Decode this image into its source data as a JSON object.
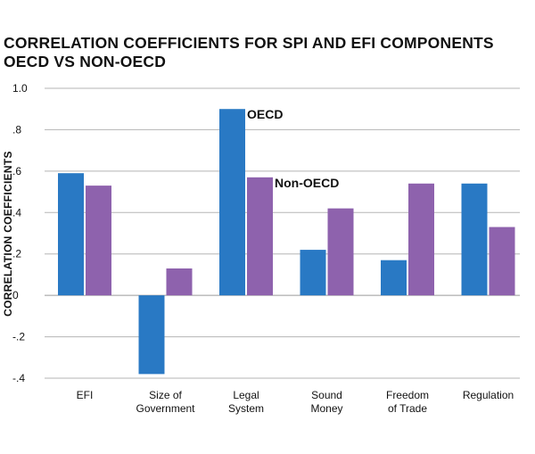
{
  "chart_data": {
    "type": "bar",
    "title_line1": "CORRELATION COEFFICIENTS FOR SPI AND EFI COMPONENTS",
    "title_line2": "OECD VS NON-OECD",
    "ylabel": "CORRELATION COEFFICIENTS",
    "xlabel": "",
    "ylim": [
      -0.4,
      1.0
    ],
    "yticks": [
      {
        "value": 1.0,
        "label": "1.0"
      },
      {
        "value": 0.8,
        "label": ".8"
      },
      {
        "value": 0.6,
        "label": ".6"
      },
      {
        "value": 0.4,
        "label": ".4"
      },
      {
        "value": 0.2,
        "label": ".2"
      },
      {
        "value": 0.0,
        "label": "0"
      },
      {
        "value": -0.2,
        "label": "-.2"
      },
      {
        "value": -0.4,
        "label": "-.4"
      }
    ],
    "categories": [
      [
        "EFI"
      ],
      [
        "Size of",
        "Government"
      ],
      [
        "Legal",
        "System"
      ],
      [
        "Sound",
        "Money"
      ],
      [
        "Freedom",
        "of Trade"
      ],
      [
        "Regulation"
      ]
    ],
    "series": [
      {
        "name": "OECD",
        "color": "#2979c4",
        "values": [
          0.59,
          -0.38,
          0.9,
          0.22,
          0.17,
          0.54
        ]
      },
      {
        "name": "Non-OECD",
        "color": "#8e62ad",
        "values": [
          0.53,
          0.13,
          0.57,
          0.42,
          0.54,
          0.33
        ]
      }
    ],
    "grid": true,
    "grid_color": "#b5b5b5",
    "annotations": [
      {
        "text": "OECD",
        "series": 0,
        "category": 2
      },
      {
        "text": "Non-OECD",
        "series": 1,
        "category": 2
      }
    ]
  }
}
